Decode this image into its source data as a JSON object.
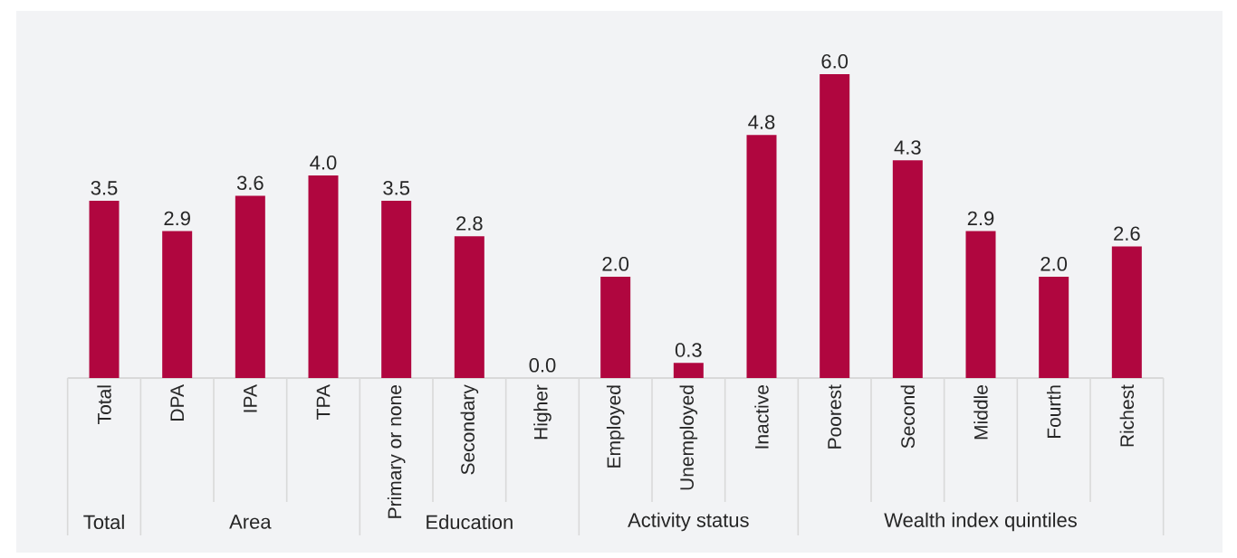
{
  "chart_data": {
    "type": "bar",
    "categories": [
      "Total",
      "DPA",
      "IPA",
      "TPA",
      "Primary or none",
      "Secondary",
      "Higher",
      "Employed",
      "Unemployed",
      "Inactive",
      "Poorest",
      "Second",
      "Middle",
      "Fourth",
      "Richest"
    ],
    "values": [
      3.5,
      2.9,
      3.6,
      4.0,
      3.5,
      2.8,
      0.0,
      2.0,
      0.3,
      4.8,
      6.0,
      4.3,
      2.9,
      2.0,
      2.6
    ],
    "color": "#b0063f",
    "value_labels": [
      "3.5",
      "2.9",
      "3.6",
      "4.0",
      "3.5",
      "2.8",
      "0.0",
      "2.0",
      "0.3",
      "4.8",
      "6.0",
      "4.3",
      "2.9",
      "2.0",
      "2.6"
    ],
    "annotations": [
      "Total",
      "Area",
      "Education",
      "Activity status",
      "Wealth index quintiles"
    ]
  }
}
